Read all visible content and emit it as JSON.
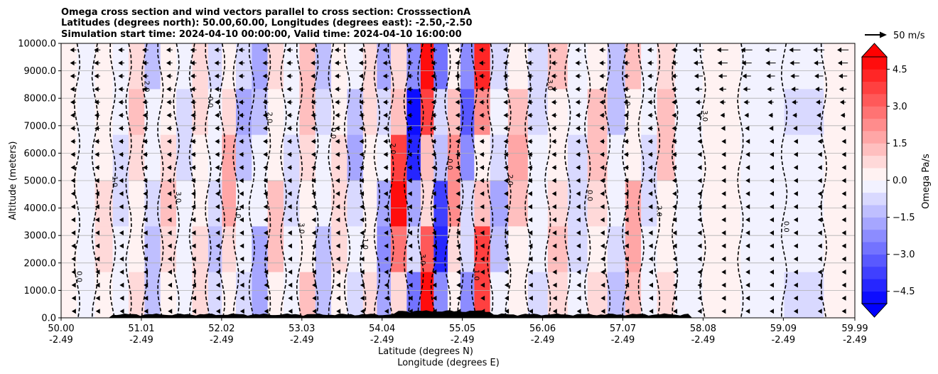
{
  "chart_data": {
    "type": "heatmap",
    "title_lines": [
      "Omega cross section and wind vectors parallel to cross section: CrosssectionA",
      "Latitudes (degrees north): 50.00,60.00, Longitudes (degrees east): -2.50,-2.50",
      "Simulation start time: 2024-04-10 00:00:00, Valid time: 2024-04-10 16:00:00"
    ],
    "xlabel_lines": [
      "Latitude (degrees N)",
      "Longitude (degrees E)"
    ],
    "ylabel": "Altitude (meters)",
    "x_range": [
      50.0,
      59.99
    ],
    "ylim": [
      0,
      10000
    ],
    "xticks": [
      {
        "lat": "50.00",
        "lon": "-2.49",
        "value": 50.0
      },
      {
        "lat": "51.01",
        "lon": "-2.49",
        "value": 51.01
      },
      {
        "lat": "52.02",
        "lon": "-2.49",
        "value": 52.02
      },
      {
        "lat": "53.03",
        "lon": "-2.49",
        "value": 53.03
      },
      {
        "lat": "54.04",
        "lon": "-2.49",
        "value": 54.04
      },
      {
        "lat": "55.05",
        "lon": "-2.49",
        "value": 55.05
      },
      {
        "lat": "56.06",
        "lon": "-2.49",
        "value": 56.06
      },
      {
        "lat": "57.07",
        "lon": "-2.49",
        "value": 57.07
      },
      {
        "lat": "58.08",
        "lon": "-2.49",
        "value": 58.08
      },
      {
        "lat": "59.09",
        "lon": "-2.49",
        "value": 59.09
      },
      {
        "lat": "59.99",
        "lon": "-2.49",
        "value": 59.99
      }
    ],
    "yticks": [
      {
        "label": "0.0",
        "value": 0
      },
      {
        "label": "1000.0",
        "value": 1000
      },
      {
        "label": "2000.0",
        "value": 2000
      },
      {
        "label": "3000.0",
        "value": 3000
      },
      {
        "label": "4000.0",
        "value": 4000
      },
      {
        "label": "5000.0",
        "value": 5000
      },
      {
        "label": "6000.0",
        "value": 6000
      },
      {
        "label": "7000.0",
        "value": 7000
      },
      {
        "label": "8000.0",
        "value": 8000
      },
      {
        "label": "9000.0",
        "value": 9000
      },
      {
        "label": "10000.0",
        "value": 10000
      }
    ],
    "grid": "horizontal",
    "colorbar": {
      "label": "Omega Pa/s",
      "range": [
        -5.0,
        5.0
      ],
      "extend": "both",
      "levels": [
        -5.0,
        -4.5,
        -4.0,
        -3.5,
        -3.0,
        -2.5,
        -2.0,
        -1.5,
        -1.0,
        -0.5,
        0.0,
        0.5,
        1.0,
        1.5,
        2.0,
        2.5,
        3.0,
        3.5,
        4.0,
        4.5,
        5.0
      ],
      "ticks": [
        {
          "label": "4.5",
          "value": 4.5
        },
        {
          "label": "3.0",
          "value": 3.0
        },
        {
          "label": "1.5",
          "value": 1.5
        },
        {
          "label": "0.0",
          "value": 0.0
        },
        {
          "label": "−1.5",
          "value": -1.5
        },
        {
          "label": "−3.0",
          "value": -3.0
        },
        {
          "label": "−4.5",
          "value": -4.5
        }
      ],
      "min_color": "#0000ff",
      "max_color": "#ff0000",
      "mid_color": "#ffffff"
    },
    "quiver_key": {
      "label": "50 m/s",
      "speed": 50
    },
    "omega_bands": [
      {
        "lat": 50.1,
        "value": 0.3
      },
      {
        "lat": 50.3,
        "value": -0.4
      },
      {
        "lat": 50.55,
        "value": 0.6
      },
      {
        "lat": 50.75,
        "value": -0.8
      },
      {
        "lat": 50.95,
        "value": 1.1
      },
      {
        "lat": 51.15,
        "value": -1.2
      },
      {
        "lat": 51.35,
        "value": 1.4
      },
      {
        "lat": 51.55,
        "value": -0.9
      },
      {
        "lat": 51.75,
        "value": 1.0
      },
      {
        "lat": 51.95,
        "value": -1.1
      },
      {
        "lat": 52.1,
        "value": 1.8
      },
      {
        "lat": 52.3,
        "value": -1.6
      },
      {
        "lat": 52.5,
        "value": -2.0
      },
      {
        "lat": 52.7,
        "value": 1.2
      },
      {
        "lat": 52.9,
        "value": -0.8
      },
      {
        "lat": 53.1,
        "value": 1.5
      },
      {
        "lat": 53.3,
        "value": -1.2
      },
      {
        "lat": 53.5,
        "value": 1.0
      },
      {
        "lat": 53.7,
        "value": -1.7
      },
      {
        "lat": 53.9,
        "value": 0.6
      },
      {
        "lat": 54.05,
        "value": -2.5
      },
      {
        "lat": 54.25,
        "value": 4.8
      },
      {
        "lat": 54.45,
        "value": -5.0
      },
      {
        "lat": 54.6,
        "value": 5.0
      },
      {
        "lat": 54.78,
        "value": -4.6
      },
      {
        "lat": 54.95,
        "value": 2.5
      },
      {
        "lat": 55.1,
        "value": -3.2
      },
      {
        "lat": 55.3,
        "value": 4.2
      },
      {
        "lat": 55.5,
        "value": -1.8
      },
      {
        "lat": 55.75,
        "value": 1.6
      },
      {
        "lat": 56.0,
        "value": -1.0
      },
      {
        "lat": 56.25,
        "value": 1.2
      },
      {
        "lat": 56.5,
        "value": -0.9
      },
      {
        "lat": 56.75,
        "value": 1.3
      },
      {
        "lat": 57.0,
        "value": -1.4
      },
      {
        "lat": 57.2,
        "value": 1.9
      },
      {
        "lat": 57.4,
        "value": -1.0
      },
      {
        "lat": 57.6,
        "value": 1.4
      },
      {
        "lat": 57.85,
        "value": -0.5
      },
      {
        "lat": 58.3,
        "value": 0.3
      },
      {
        "lat": 58.8,
        "value": -0.3
      },
      {
        "lat": 59.4,
        "value": -0.6
      },
      {
        "lat": 59.8,
        "value": 0.3
      }
    ],
    "wind_direction": "southward (toward 50.00)",
    "contour_labels": [
      "0.0",
      "-1.0",
      "1.0",
      "-2.0",
      "2.0",
      "-3.0",
      "3.0",
      "0.0"
    ]
  }
}
